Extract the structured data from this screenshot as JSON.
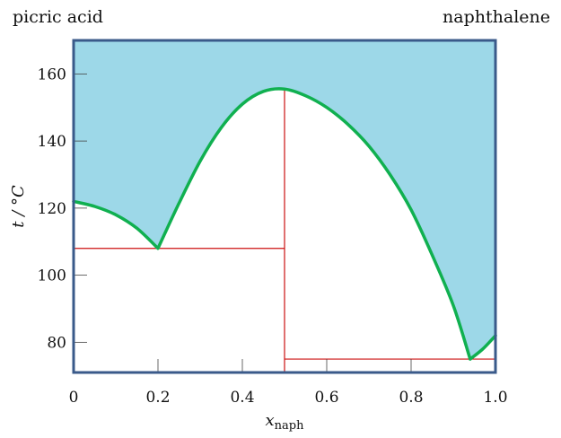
{
  "labels": {
    "left_component": "picric acid",
    "right_component": "naphthalene"
  },
  "chart_data": {
    "type": "line",
    "title": "",
    "xlabel_main": "x",
    "xlabel_sub": "naph",
    "ylabel": "t / °C",
    "xlim": [
      0,
      1.0
    ],
    "ylim": [
      71,
      170
    ],
    "x_ticks": [
      {
        "value": 0,
        "label": "0"
      },
      {
        "value": 0.2,
        "label": "0.2"
      },
      {
        "value": 0.4,
        "label": "0.4"
      },
      {
        "value": 0.6,
        "label": "0.6"
      },
      {
        "value": 0.8,
        "label": "0.8"
      },
      {
        "value": 1.0,
        "label": "1.0"
      }
    ],
    "y_ticks": [
      {
        "value": 80,
        "label": "80"
      },
      {
        "value": 100,
        "label": "100"
      },
      {
        "value": 120,
        "label": "120"
      },
      {
        "value": 140,
        "label": "140"
      },
      {
        "value": 160,
        "label": "160"
      }
    ],
    "grid": false,
    "colors": {
      "liquid_region": "#9dd8e8",
      "liquidus": "#10b050",
      "tie_lines": "#cc1111",
      "frame": "#3a5a8a"
    },
    "series": [
      {
        "role": "liquidus",
        "x": [
          0,
          0.05,
          0.1,
          0.15,
          0.2,
          0.25,
          0.3,
          0.35,
          0.4,
          0.45,
          0.5,
          0.55,
          0.6,
          0.65,
          0.7,
          0.75,
          0.8,
          0.85,
          0.9,
          0.94,
          0.97,
          1.0
        ],
        "y": [
          122,
          120.5,
          118,
          114,
          108,
          121.5,
          134,
          144,
          151,
          154.8,
          155.5,
          153.5,
          150,
          145,
          138.5,
          130,
          119.5,
          106,
          91,
          75,
          78,
          82
        ]
      }
    ],
    "tie_lines": [
      {
        "x": [
          0,
          0.5
        ],
        "y": [
          108,
          108
        ]
      },
      {
        "x": [
          0.5,
          0.5
        ],
        "y": [
          155,
          71
        ]
      },
      {
        "x": [
          0.5,
          1.0
        ],
        "y": [
          75,
          75
        ]
      }
    ],
    "eutectics": [
      {
        "x": 0.2,
        "y": 108
      },
      {
        "x": 0.94,
        "y": 75
      }
    ],
    "congruent_melting": {
      "x": 0.5,
      "y": 155.5
    }
  }
}
